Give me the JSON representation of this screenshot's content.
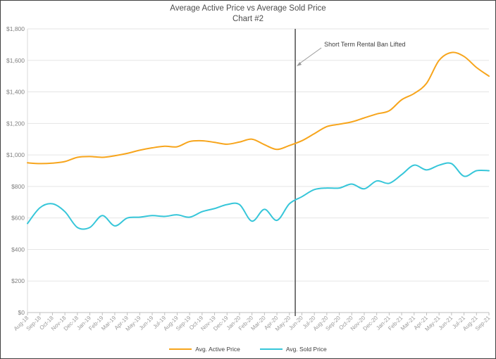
{
  "header": {
    "title": "Average Active Price vs Average Sold Price",
    "subtitle": "Chart #2"
  },
  "legend": {
    "items": [
      {
        "label": "Avg. Active Price",
        "color": "#F7A51C"
      },
      {
        "label": "Avg. Sold Price",
        "color": "#36C6D9"
      }
    ]
  },
  "chart_data": {
    "type": "line",
    "title": "Average Active Price vs Average Sold Price",
    "subtitle": "Chart #2",
    "smooth": true,
    "grid": "horizontal",
    "legend_position": "bottom",
    "ylim": [
      0,
      1800
    ],
    "y_tick_labels": [
      "$0",
      "$200",
      "$400",
      "$600",
      "$800",
      "$1,000",
      "$1,200",
      "$1,400",
      "$1,600",
      "$1,800"
    ],
    "y_tick_values": [
      0,
      200,
      400,
      600,
      800,
      1000,
      1200,
      1400,
      1600,
      1800
    ],
    "categories": [
      "Aug-18",
      "Sep-18",
      "Oct-18",
      "Nov-18",
      "Dec-18",
      "Jan-19",
      "Feb-19",
      "Mar-19",
      "Apr-19",
      "May-19",
      "Jun-19",
      "Jul-19",
      "Aug-19",
      "Sep-19",
      "Oct-19",
      "Nov-19",
      "Dec-19",
      "Jan-20",
      "Feb-20",
      "Mar-20",
      "Apr-20",
      "May-20",
      "Jun-20",
      "Jul-20",
      "Aug-20",
      "Sep-20",
      "Oct-20",
      "Nov-20",
      "Dec-20",
      "Jan-21",
      "Feb-21",
      "Mar-21",
      "Apr-21",
      "May-21",
      "Jun-21",
      "Jul-21",
      "Aug-21",
      "Sep-21"
    ],
    "series": [
      {
        "name": "Avg. Active Price",
        "color": "#F7A51C",
        "values": [
          950,
          945,
          948,
          958,
          985,
          990,
          985,
          995,
          1010,
          1030,
          1045,
          1055,
          1052,
          1085,
          1090,
          1080,
          1068,
          1082,
          1100,
          1065,
          1035,
          1060,
          1090,
          1135,
          1180,
          1195,
          1210,
          1235,
          1260,
          1280,
          1350,
          1390,
          1455,
          1600,
          1650,
          1625,
          1555,
          1500
        ]
      },
      {
        "name": "Avg. Sold Price",
        "color": "#36C6D9",
        "values": [
          565,
          665,
          690,
          640,
          540,
          540,
          615,
          550,
          600,
          605,
          615,
          610,
          620,
          605,
          640,
          660,
          685,
          685,
          580,
          655,
          585,
          690,
          735,
          780,
          790,
          790,
          815,
          785,
          835,
          820,
          875,
          935,
          905,
          935,
          945,
          865,
          900,
          900
        ]
      }
    ],
    "annotation": {
      "text": "Short Term Rental Ban Lifted",
      "between_categories": [
        "May-20",
        "Jun-20"
      ],
      "x_index": 21.47
    }
  }
}
